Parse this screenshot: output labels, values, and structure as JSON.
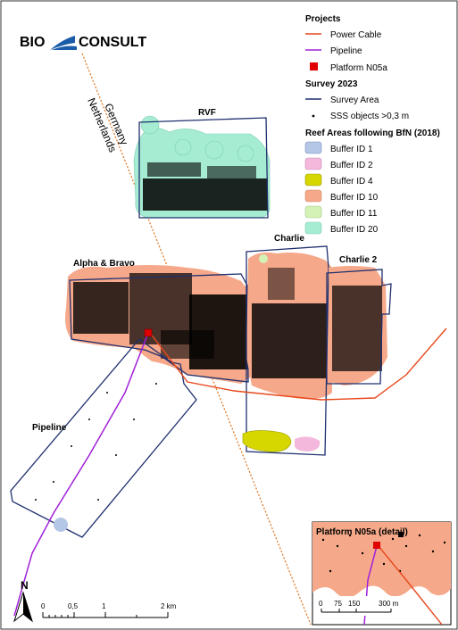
{
  "logo": {
    "left": "BIO",
    "right": "CONSULT",
    "accent_color": "#1a5ca8"
  },
  "legend": {
    "projects_title": "Projects",
    "power_cable": "Power Cable",
    "pipeline": "Pipeline",
    "platform": "Platform N05a",
    "survey_title": "Survey 2023",
    "survey_area": "Survey Area",
    "sss_objects": "SSS objects >0,3 m",
    "reef_title": "Reef Areas following BfN (2018)",
    "buffers": [
      {
        "label": "Buffer ID 1",
        "color": "#b4c7e7"
      },
      {
        "label": "Buffer ID 2",
        "color": "#f4b8dc"
      },
      {
        "label": "Buffer ID 4",
        "color": "#d6d600"
      },
      {
        "label": "Buffer ID 10",
        "color": "#f6a98a"
      },
      {
        "label": "Buffer ID 11",
        "color": "#d4f2b6"
      },
      {
        "label": "Buffer ID 20",
        "color": "#a6ecd2"
      }
    ]
  },
  "map": {
    "country_germany": "Germany",
    "country_netherlands": "Netherlands",
    "areas": {
      "rvf": "RVF",
      "alpha_bravo": "Alpha & Bravo",
      "charlie": "Charlie",
      "charlie2": "Charlie 2",
      "pipeline": "Pipeline"
    },
    "colors": {
      "survey_outline": "#1f2f6e",
      "power_cable": "#e8471b",
      "pipeline": "#a020d8",
      "platform": "#e00000",
      "border": "#e07a28"
    }
  },
  "inset": {
    "title": "Platform N05a (detail)"
  },
  "north_arrow": {
    "label": "N"
  },
  "scalebar": {
    "labels": [
      "0",
      "0,5",
      "1",
      "2 km"
    ],
    "inset_labels": [
      "0",
      "75",
      "150",
      "300 m"
    ]
  }
}
